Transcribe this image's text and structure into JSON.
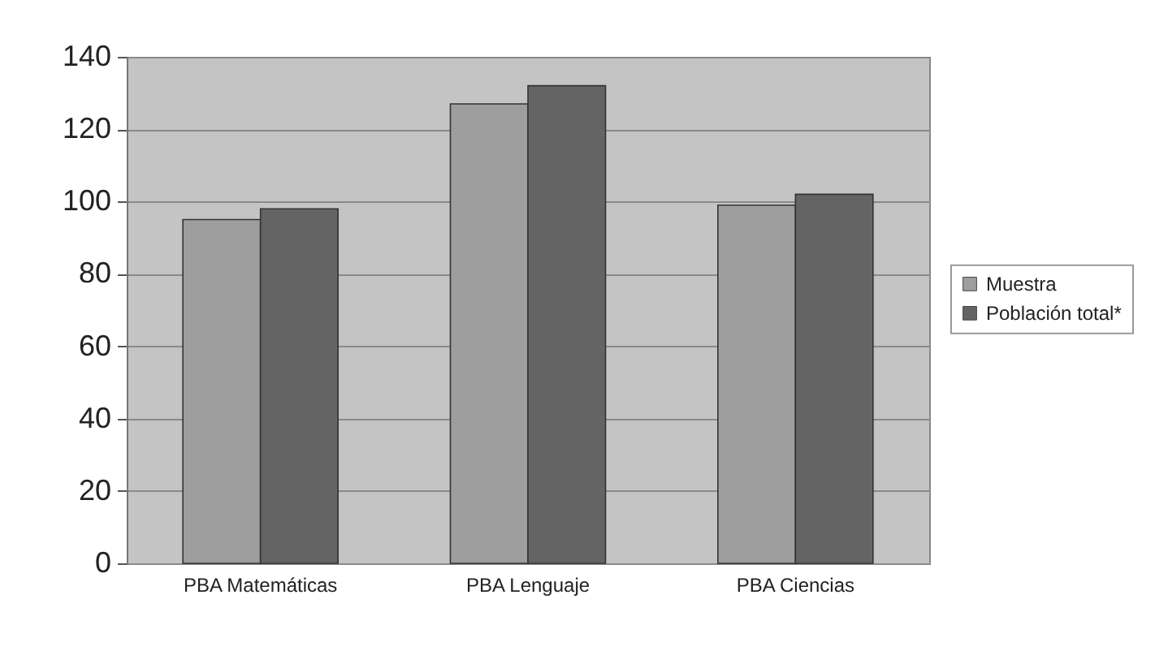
{
  "chart_data": {
    "type": "bar",
    "categories": [
      "PBA Matemáticas",
      "PBA Lenguaje",
      "PBA Ciencias"
    ],
    "series": [
      {
        "name": "Muestra",
        "color": "#9e9e9e",
        "values": [
          95,
          127,
          99
        ]
      },
      {
        "name": "Población total*",
        "color": "#646464",
        "values": [
          98,
          132,
          102
        ]
      }
    ],
    "ylim": [
      0,
      140
    ],
    "yticks": [
      0,
      20,
      40,
      60,
      80,
      100,
      120,
      140
    ],
    "grid": "y",
    "legend": "right"
  }
}
